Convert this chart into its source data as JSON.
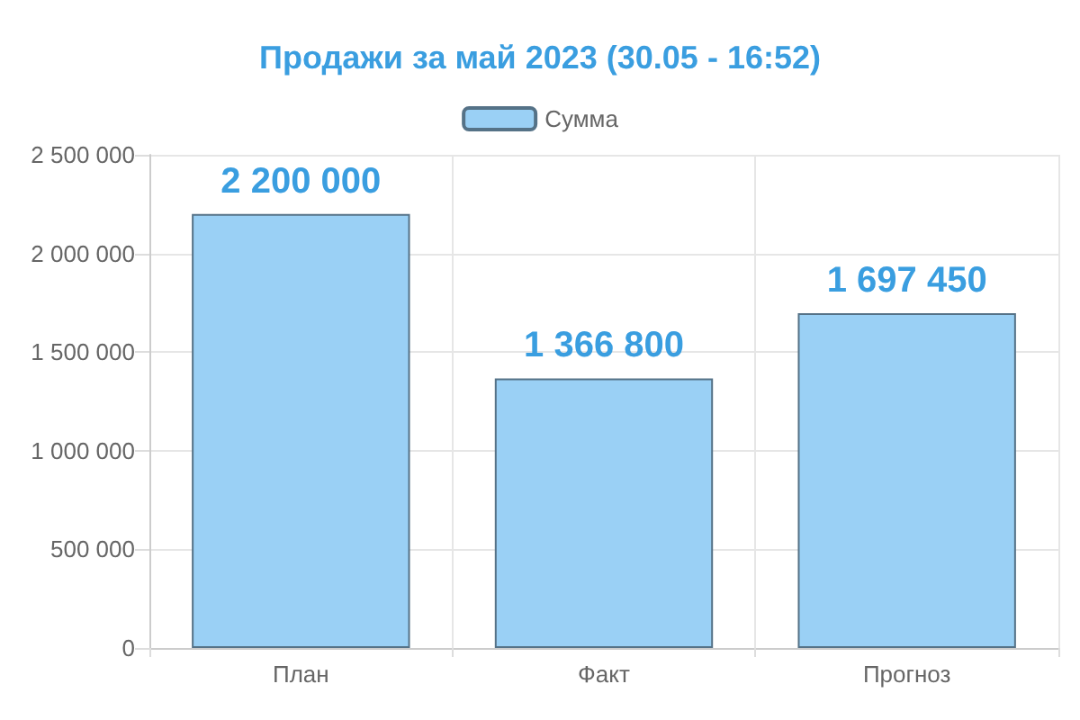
{
  "chart_data": {
    "type": "bar",
    "title": "Продажи за май 2023 (30.05 - 16:52)",
    "categories": [
      "План",
      "Факт",
      "Прогноз"
    ],
    "series": [
      {
        "name": "Сумма",
        "color": "#9ad0f5",
        "values": [
          2200000,
          1366800,
          1697450
        ],
        "value_labels": [
          "2 200 000",
          "1 366 800",
          "1 697 450"
        ]
      }
    ],
    "ylim": [
      0,
      2500000
    ],
    "yticks": [
      {
        "value": 0,
        "label": "0"
      },
      {
        "value": 500000,
        "label": "500 000"
      },
      {
        "value": 1000000,
        "label": "1 000 000"
      },
      {
        "value": 1500000,
        "label": "1 500 000"
      },
      {
        "value": 2000000,
        "label": "2 000 000"
      },
      {
        "value": 2500000,
        "label": "2 500 000"
      }
    ],
    "grid": true,
    "legend": "top"
  }
}
